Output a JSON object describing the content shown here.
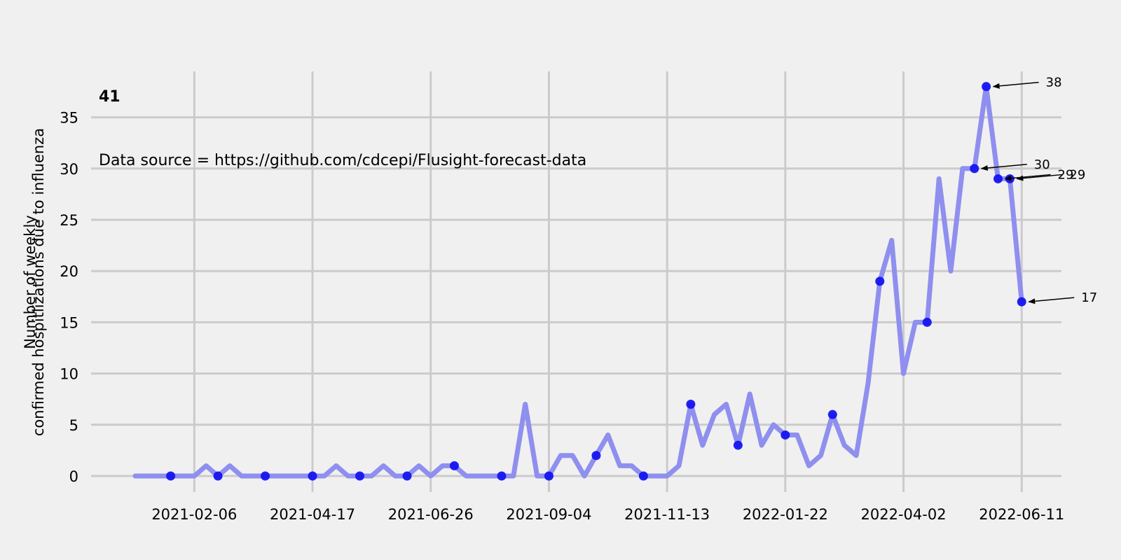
{
  "chart_data": {
    "type": "line",
    "ylabel_lines": [
      "Number of weekly",
      "confirmed hospitlizations due to influenza"
    ],
    "x_tick_labels": [
      "2021-02-06",
      "2021-04-17",
      "2021-06-26",
      "2021-09-04",
      "2021-11-13",
      "2022-01-22",
      "2022-04-02",
      "2022-06-11"
    ],
    "y_ticks": [
      0,
      5,
      10,
      15,
      20,
      25,
      30,
      35
    ],
    "ylim": [
      -1.5,
      39.5
    ],
    "grid": true,
    "colors": {
      "line": "#8f8fef",
      "marker": "#1414f0",
      "grid": "#cbcbcb",
      "background": "#f0f0f0"
    },
    "highlight_text": "41",
    "source_text": "Data source = https://github.com/cdcepi/Flusight-forecast-data",
    "series": [
      {
        "values": [
          0,
          0,
          0,
          0,
          0,
          0,
          1,
          0,
          1,
          0,
          0,
          0,
          0,
          0,
          0,
          0,
          0,
          1,
          0,
          0,
          0,
          1,
          0,
          0,
          1,
          0,
          1,
          1,
          0,
          0,
          0,
          0,
          0,
          7,
          0,
          0,
          2,
          2,
          0,
          2,
          4,
          1,
          1,
          0,
          0,
          0,
          1,
          7,
          3,
          6,
          7,
          3,
          8,
          3,
          5,
          4,
          4,
          1,
          2,
          6,
          3,
          2,
          9,
          19,
          23,
          10,
          15,
          15,
          29,
          20,
          30,
          30,
          38,
          29,
          29,
          17
        ]
      }
    ],
    "x_start_date": "2021-01-02",
    "week_step_days": 7,
    "marker_every": 4,
    "marker_offset": 3,
    "annotations": [
      {
        "index": 72,
        "label": "38"
      },
      {
        "index": 71,
        "label": "30"
      },
      {
        "index": 73,
        "label": "29"
      },
      {
        "index": 74,
        "label": "29"
      },
      {
        "index": 75,
        "label": "17"
      }
    ]
  }
}
